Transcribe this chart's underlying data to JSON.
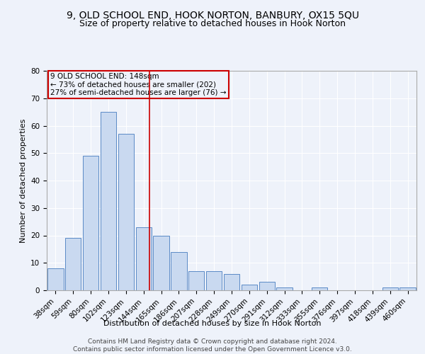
{
  "title": "9, OLD SCHOOL END, HOOK NORTON, BANBURY, OX15 5QU",
  "subtitle": "Size of property relative to detached houses in Hook Norton",
  "xlabel": "Distribution of detached houses by size in Hook Norton",
  "ylabel": "Number of detached properties",
  "bar_labels": [
    "38sqm",
    "59sqm",
    "80sqm",
    "102sqm",
    "123sqm",
    "144sqm",
    "165sqm",
    "186sqm",
    "207sqm",
    "228sqm",
    "249sqm",
    "270sqm",
    "291sqm",
    "312sqm",
    "333sqm",
    "355sqm",
    "376sqm",
    "397sqm",
    "418sqm",
    "439sqm",
    "460sqm"
  ],
  "bar_values": [
    8,
    19,
    49,
    65,
    57,
    23,
    20,
    14,
    7,
    7,
    6,
    2,
    3,
    1,
    0,
    1,
    0,
    0,
    0,
    1,
    1
  ],
  "bar_color": "#c9d9f0",
  "bar_edgecolor": "#5a8ac6",
  "vline_x": 5.35,
  "vline_color": "#cc0000",
  "annotation_text": "9 OLD SCHOOL END: 148sqm\n← 73% of detached houses are smaller (202)\n27% of semi-detached houses are larger (76) →",
  "annotation_box_edgecolor": "#cc0000",
  "ylim": [
    0,
    80
  ],
  "yticks": [
    0,
    10,
    20,
    30,
    40,
    50,
    60,
    70,
    80
  ],
  "footer": "Contains HM Land Registry data © Crown copyright and database right 2024.\nContains public sector information licensed under the Open Government Licence v3.0.",
  "bg_color": "#eef2fa",
  "grid_color": "#ffffff",
  "title_fontsize": 10,
  "subtitle_fontsize": 9,
  "label_fontsize": 8,
  "tick_fontsize": 7.5,
  "footer_fontsize": 6.5,
  "annotation_fontsize": 7.5
}
